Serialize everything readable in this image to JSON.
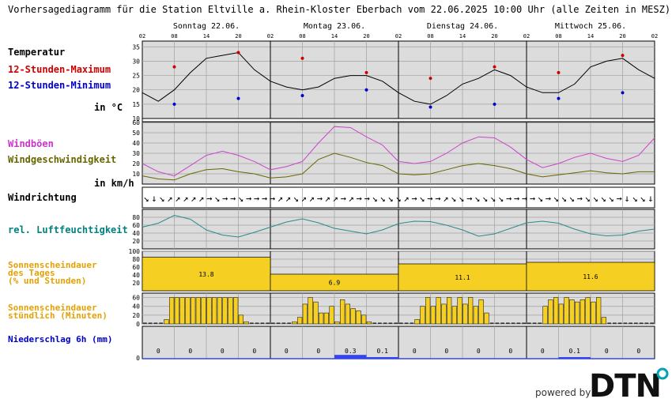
{
  "title": "Vorhersagediagramm für die Station Eltville a. Rhein-Kloster Eberbach vom 22.06.2025 10:00 Uhr (alle Zeiten in MESZ)",
  "branding": {
    "powered_by": "powered by",
    "logo_text": "DTN",
    "logo_color": "#111111",
    "logo_accent": "#00a3b4"
  },
  "days": [
    "Sonntag 22.06.",
    "Montag 23.06.",
    "Dienstag 24.06.",
    "Mittwoch 25.06."
  ],
  "hour_ticks": [
    "02",
    "08",
    "14",
    "20",
    "02",
    "08",
    "14",
    "20",
    "02",
    "08",
    "14",
    "20",
    "02",
    "08",
    "14",
    "20",
    "02"
  ],
  "panels": {
    "temperature": {
      "labels": [
        "Temperatur",
        "12-Stunden-Maximum",
        "12-Stunden-Minimum",
        "in °C"
      ],
      "label_colors": [
        "#000000",
        "#cc0000",
        "#0000cc",
        "#000000"
      ],
      "ticks": [
        "35",
        "30",
        "25",
        "20",
        "15",
        "10"
      ]
    },
    "wind": {
      "labels": [
        "Windböen",
        "Windgeschwindigkeit",
        "in km/h"
      ],
      "label_colors": [
        "#cc33cc",
        "#666600",
        "#000000"
      ],
      "ticks": [
        "60",
        "50",
        "40",
        "30",
        "20",
        "10"
      ]
    },
    "winddir": {
      "labels": [
        "Windrichtung"
      ]
    },
    "humidity": {
      "labels": [
        "rel. Luftfeuchtigkeit"
      ],
      "label_colors": [
        "#008080"
      ],
      "ticks": [
        "80",
        "60",
        "40",
        "20"
      ]
    },
    "sunshine_daily": {
      "labels": [
        "Sonnenscheindauer",
        "des Tages",
        "(% und Stunden)"
      ],
      "label_color": "#e6a100",
      "ticks": [
        "100",
        "80",
        "60",
        "40",
        "20"
      ]
    },
    "sunshine_hourly": {
      "labels": [
        "Sonnenscheindauer",
        "stündlich (Minuten)"
      ],
      "label_color": "#e6a100",
      "ticks": [
        "60",
        "40",
        "20",
        "0"
      ]
    },
    "precip": {
      "labels": [
        "Niederschlag 6h (mm)"
      ],
      "label_color": "#0000cc",
      "ticks": [
        "0"
      ]
    }
  },
  "chart_data": [
    {
      "type": "line",
      "title": "Temperatur",
      "ylabel": "in °C",
      "ylim": [
        10,
        37
      ],
      "x_hours_from_start": [
        0,
        3,
        6,
        9,
        12,
        15,
        18,
        21,
        24,
        27,
        30,
        33,
        36,
        39,
        42,
        45,
        48,
        51,
        54,
        57,
        60,
        63,
        66,
        69,
        72,
        75,
        78,
        81,
        84,
        87,
        90,
        93,
        96
      ],
      "series": [
        {
          "name": "Temperatur",
          "values": [
            19,
            16,
            20,
            26,
            31,
            32,
            33,
            27,
            23,
            21,
            20,
            21,
            24,
            25,
            25,
            23,
            19,
            16,
            15,
            18,
            22,
            24,
            27,
            25,
            21,
            19,
            19,
            22,
            28,
            30,
            31,
            27,
            24
          ]
        }
      ],
      "max_markers": [
        {
          "hour": 6,
          "value": 28
        },
        {
          "hour": 18,
          "value": 33
        },
        {
          "hour": 30,
          "value": 31
        },
        {
          "hour": 42,
          "value": 26
        },
        {
          "hour": 54,
          "value": 24
        },
        {
          "hour": 66,
          "value": 28
        },
        {
          "hour": 78,
          "value": 26
        },
        {
          "hour": 90,
          "value": 32
        }
      ],
      "min_markers": [
        {
          "hour": 6,
          "value": 15
        },
        {
          "hour": 18,
          "value": 17
        },
        {
          "hour": 30,
          "value": 18
        },
        {
          "hour": 42,
          "value": 20
        },
        {
          "hour": 54,
          "value": 14
        },
        {
          "hour": 66,
          "value": 15
        },
        {
          "hour": 78,
          "value": 17
        },
        {
          "hour": 90,
          "value": 19
        }
      ],
      "colors": {
        "line": "#000000",
        "max": "#cc0000",
        "min": "#0000cc"
      }
    },
    {
      "type": "line",
      "title": "Wind",
      "ylabel": "in km/h",
      "ylim": [
        0,
        60
      ],
      "x_hours_from_start": [
        0,
        3,
        6,
        9,
        12,
        15,
        18,
        21,
        24,
        27,
        30,
        33,
        36,
        39,
        42,
        45,
        48,
        51,
        54,
        57,
        60,
        63,
        66,
        69,
        72,
        75,
        78,
        81,
        84,
        87,
        90,
        93,
        96
      ],
      "series": [
        {
          "name": "Windböen",
          "values": [
            20,
            12,
            8,
            18,
            28,
            32,
            28,
            22,
            14,
            17,
            22,
            40,
            56,
            55,
            46,
            38,
            22,
            20,
            22,
            30,
            40,
            46,
            45,
            36,
            24,
            16,
            20,
            26,
            30,
            25,
            22,
            28,
            45
          ]
        },
        {
          "name": "Windgeschwindigkeit",
          "values": [
            8,
            5,
            4,
            10,
            14,
            15,
            12,
            10,
            6,
            7,
            10,
            24,
            30,
            26,
            21,
            18,
            10,
            9,
            10,
            14,
            18,
            20,
            18,
            15,
            10,
            7,
            9,
            11,
            13,
            11,
            10,
            12,
            12
          ]
        }
      ],
      "colors": {
        "Windböen": "#cc44cc",
        "Windgeschwindigkeit": "#666600"
      }
    },
    {
      "type": "table",
      "title": "Windrichtung",
      "directions": [
        "↘",
        "↓",
        "↘",
        "↗",
        "↗",
        "↗",
        "↗",
        "↗",
        "→",
        "↘",
        "→",
        "→",
        "↘",
        "→",
        "→",
        "→",
        "→",
        "↗",
        "↗",
        "↘",
        "↗",
        "↗",
        "→",
        "↗",
        "↗",
        "→",
        "↗",
        "→",
        "→",
        "↘",
        "↘",
        "↘",
        "↘",
        "↗",
        "→",
        "↘",
        "→",
        "→",
        "↗",
        "↘",
        "↘",
        "→",
        "↘",
        "↘",
        "↘",
        "↘",
        "→",
        "→",
        "→",
        "→",
        "↘",
        "→",
        "↘",
        "↘",
        "↘",
        "→",
        "↘",
        "↘",
        "↘",
        "↘",
        "→",
        "↓",
        "↘",
        "↘",
        "↓"
      ]
    },
    {
      "type": "line",
      "title": "rel. Luftfeuchtigkeit",
      "ylim": [
        0,
        100
      ],
      "x_hours_from_start": [
        0,
        3,
        6,
        9,
        12,
        15,
        18,
        21,
        24,
        27,
        30,
        33,
        36,
        39,
        42,
        45,
        48,
        51,
        54,
        57,
        60,
        63,
        66,
        69,
        72,
        75,
        78,
        81,
        84,
        87,
        90,
        93,
        96
      ],
      "series": [
        {
          "name": "rel. Luftfeuchtigkeit",
          "values": [
            55,
            65,
            85,
            75,
            48,
            35,
            30,
            42,
            55,
            68,
            76,
            66,
            52,
            45,
            38,
            48,
            64,
            70,
            69,
            60,
            48,
            32,
            38,
            52,
            66,
            70,
            65,
            50,
            38,
            33,
            35,
            45,
            50
          ]
        }
      ],
      "colors": {
        "rel. Luftfeuchtigkeit": "#2a8a8a"
      }
    },
    {
      "type": "bar",
      "title": "Sonnenscheindauer des Tages",
      "categories": [
        "Sonntag 22.06.",
        "Montag 23.06.",
        "Dienstag 24.06.",
        "Mittwoch 25.06."
      ],
      "values_percent": [
        85,
        42,
        68,
        72
      ],
      "values_hours": [
        "13.8",
        "6.9",
        "11.1",
        "11.6"
      ],
      "ylim": [
        0,
        100
      ],
      "colors": {
        "bar": "#f5d023"
      }
    },
    {
      "type": "bar",
      "title": "Sonnenscheindauer stündlich (Minuten)",
      "ylim": [
        0,
        70
      ],
      "values": [
        0,
        0,
        0,
        0,
        10,
        60,
        60,
        60,
        60,
        60,
        60,
        60,
        60,
        60,
        60,
        60,
        60,
        60,
        20,
        5,
        0,
        0,
        0,
        0,
        0,
        0,
        0,
        0,
        5,
        15,
        45,
        60,
        50,
        25,
        25,
        40,
        5,
        55,
        45,
        35,
        30,
        20,
        5,
        0,
        0,
        0,
        0,
        0,
        0,
        0,
        0,
        10,
        40,
        60,
        40,
        60,
        45,
        60,
        40,
        60,
        45,
        60,
        40,
        55,
        25,
        0,
        0,
        0,
        0,
        0,
        0,
        0,
        0,
        0,
        0,
        40,
        55,
        60,
        45,
        60,
        55,
        50,
        55,
        60,
        50,
        60,
        15,
        0,
        0,
        0,
        0,
        0,
        0,
        0,
        0,
        0
      ],
      "colors": {
        "bar": "#f5d023"
      }
    },
    {
      "type": "bar",
      "title": "Niederschlag 6h (mm)",
      "values": [
        "0",
        "0",
        "0",
        "0",
        "0",
        "0",
        "0.3",
        "0.1",
        "0",
        "0",
        "0",
        "0",
        "0",
        "0.1",
        "0",
        "0"
      ],
      "colors": {
        "bar": "#3344ee"
      }
    }
  ]
}
